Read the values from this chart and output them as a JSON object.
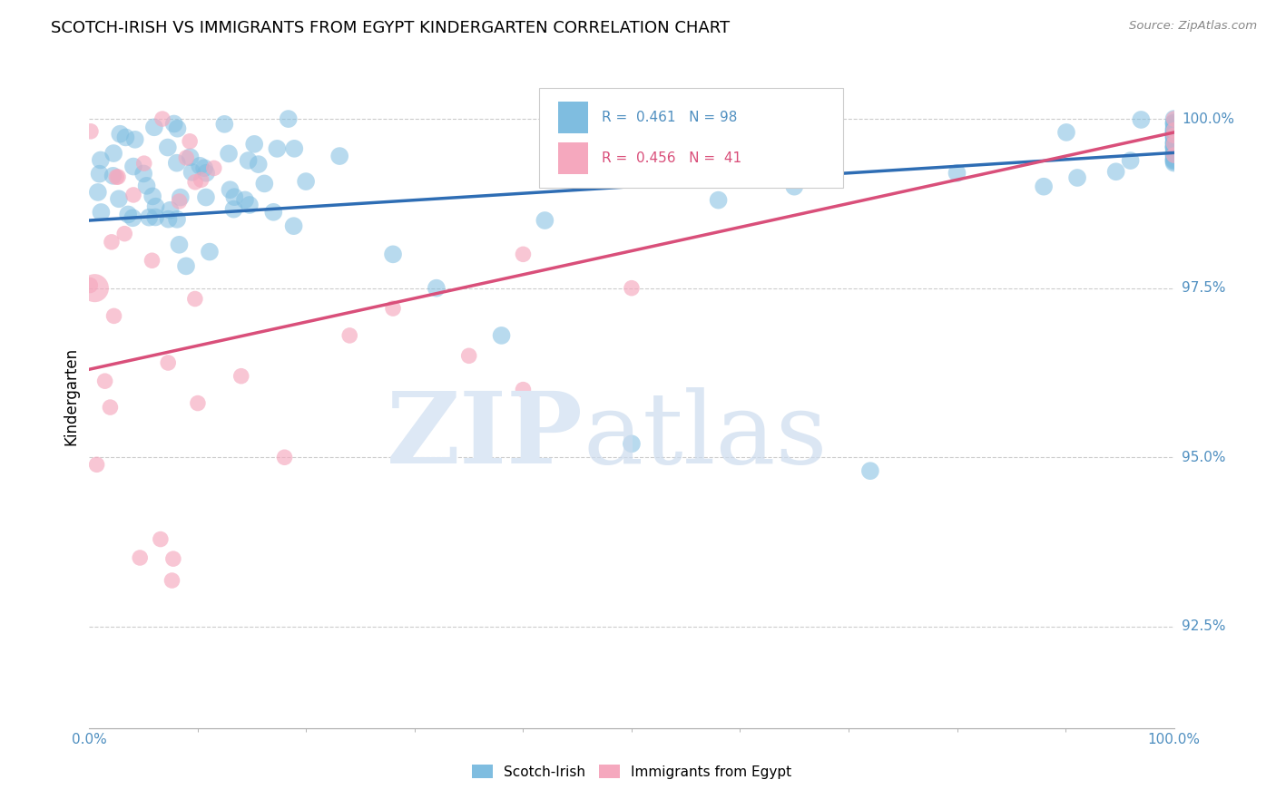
{
  "title": "SCOTCH-IRISH VS IMMIGRANTS FROM EGYPT KINDERGARTEN CORRELATION CHART",
  "source_text": "Source: ZipAtlas.com",
  "ylabel": "Kindergarten",
  "x_min": 0.0,
  "x_max": 100.0,
  "y_min": 91.0,
  "y_max": 100.8,
  "y_ticks": [
    92.5,
    95.0,
    97.5,
    100.0
  ],
  "y_tick_labels": [
    "92.5%",
    "95.0%",
    "97.5%",
    "100.0%"
  ],
  "x_tick_labels": [
    "0.0%",
    "100.0%"
  ],
  "legend_label1": "Scotch-Irish",
  "legend_label2": "Immigrants from Egypt",
  "R1": 0.461,
  "N1": 98,
  "R2": 0.456,
  "N2": 41,
  "color_blue": "#7fbde0",
  "color_pink": "#f5a8be",
  "color_blue_line": "#2e6db4",
  "color_pink_line": "#d94f7a",
  "color_axis_label": "#4f8fc0",
  "background_color": "#ffffff",
  "grid_color": "#cccccc"
}
